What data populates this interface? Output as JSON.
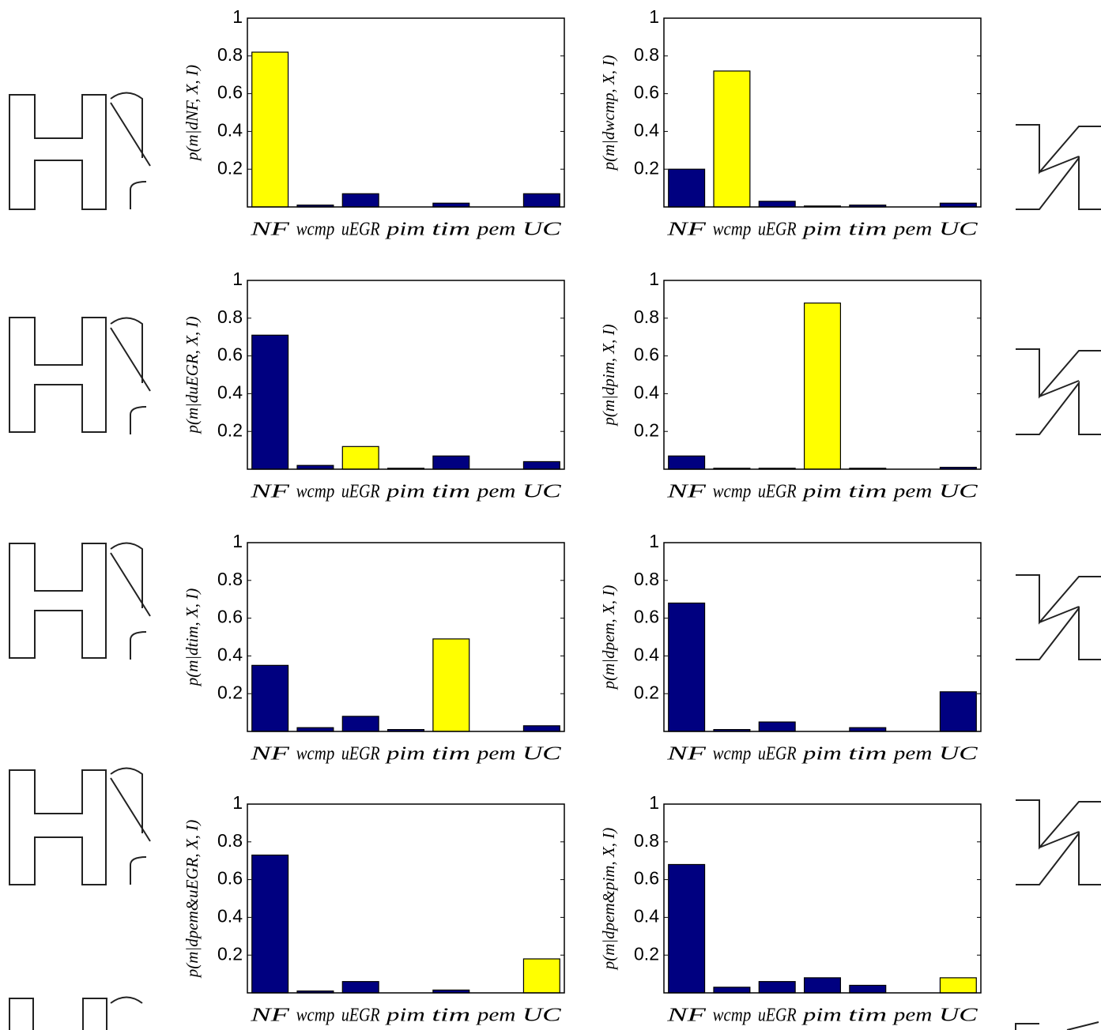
{
  "chart_data": [
    {
      "type": "bar",
      "ylabel": "p(m|dNF, X, I)",
      "categories": [
        "NF",
        "wcmp",
        "uEGR",
        "pim",
        "tim",
        "pem",
        "UC"
      ],
      "values": [
        0.82,
        0.01,
        0.07,
        0,
        0.02,
        0,
        0.07
      ],
      "colors": [
        "#ffff00",
        "#000080",
        "#000080",
        "#000080",
        "#000080",
        "#000080",
        "#000080"
      ],
      "ylim": [
        0,
        1
      ],
      "yticks": [
        0.2,
        0.4,
        0.6,
        0.8,
        1
      ]
    },
    {
      "type": "bar",
      "ylabel": "p(m|dwcmp, X, I)",
      "categories": [
        "NF",
        "wcmp",
        "uEGR",
        "pim",
        "tim",
        "pem",
        "UC"
      ],
      "values": [
        0.2,
        0.72,
        0.03,
        0.005,
        0.01,
        0,
        0.02
      ],
      "colors": [
        "#000080",
        "#ffff00",
        "#000080",
        "#000080",
        "#000080",
        "#000080",
        "#000080"
      ],
      "ylim": [
        0,
        1
      ],
      "yticks": [
        0.2,
        0.4,
        0.6,
        0.8,
        1
      ]
    },
    {
      "type": "bar",
      "ylabel": "p(m|duEGR, X, I)",
      "categories": [
        "NF",
        "wcmp",
        "uEGR",
        "pim",
        "tim",
        "pem",
        "UC"
      ],
      "values": [
        0.71,
        0.02,
        0.12,
        0.005,
        0.07,
        0,
        0.04
      ],
      "colors": [
        "#000080",
        "#000080",
        "#ffff00",
        "#000080",
        "#000080",
        "#000080",
        "#000080"
      ],
      "ylim": [
        0,
        1
      ],
      "yticks": [
        0.2,
        0.4,
        0.6,
        0.8,
        1
      ]
    },
    {
      "type": "bar",
      "ylabel": "p(m|dpim, X, I)",
      "categories": [
        "NF",
        "wcmp",
        "uEGR",
        "pim",
        "tim",
        "pem",
        "UC"
      ],
      "values": [
        0.07,
        0.005,
        0.005,
        0.88,
        0.005,
        0,
        0.01
      ],
      "colors": [
        "#000080",
        "#000080",
        "#000080",
        "#ffff00",
        "#000080",
        "#000080",
        "#000080"
      ],
      "ylim": [
        0,
        1
      ],
      "yticks": [
        0.2,
        0.4,
        0.6,
        0.8,
        1
      ]
    },
    {
      "type": "bar",
      "ylabel": "p(m|dtim, X, I)",
      "categories": [
        "NF",
        "wcmp",
        "uEGR",
        "pim",
        "tim",
        "pem",
        "UC"
      ],
      "values": [
        0.35,
        0.02,
        0.08,
        0.01,
        0.49,
        0,
        0.03
      ],
      "colors": [
        "#000080",
        "#000080",
        "#000080",
        "#000080",
        "#ffff00",
        "#000080",
        "#000080"
      ],
      "ylim": [
        0,
        1
      ],
      "yticks": [
        0.2,
        0.4,
        0.6,
        0.8,
        1
      ]
    },
    {
      "type": "bar",
      "ylabel": "p(m|dpem, X, I)",
      "categories": [
        "NF",
        "wcmp",
        "uEGR",
        "pim",
        "tim",
        "pem",
        "UC"
      ],
      "values": [
        0.68,
        0.01,
        0.05,
        0,
        0.02,
        0,
        0.21
      ],
      "colors": [
        "#000080",
        "#000080",
        "#000080",
        "#000080",
        "#000080",
        "#ffff00",
        "#000080"
      ],
      "ylim": [
        0,
        1
      ],
      "yticks": [
        0.2,
        0.4,
        0.6,
        0.8,
        1
      ]
    },
    {
      "type": "bar",
      "ylabel": "p(m|dpem&uEGR, X, I)",
      "categories": [
        "NF",
        "wcmp",
        "uEGR",
        "pim",
        "tim",
        "pem",
        "UC"
      ],
      "values": [
        0.73,
        0.01,
        0.06,
        0,
        0.015,
        0,
        0.18
      ],
      "colors": [
        "#000080",
        "#000080",
        "#000080",
        "#000080",
        "#000080",
        "#000080",
        "#ffff00"
      ],
      "ylim": [
        0,
        1
      ],
      "yticks": [
        0.2,
        0.4,
        0.6,
        0.8,
        1
      ]
    },
    {
      "type": "bar",
      "ylabel": "p(m|dpem&pim, X, I)",
      "categories": [
        "NF",
        "wcmp",
        "uEGR",
        "pim",
        "tim",
        "pem",
        "UC"
      ],
      "values": [
        0.68,
        0.03,
        0.06,
        0.08,
        0.04,
        0,
        0.08
      ],
      "colors": [
        "#000080",
        "#000080",
        "#000080",
        "#000080",
        "#000080",
        "#000080",
        "#ffff00"
      ],
      "ylim": [
        0,
        1
      ],
      "yticks": [
        0.2,
        0.4,
        0.6,
        0.8,
        1
      ]
    }
  ]
}
